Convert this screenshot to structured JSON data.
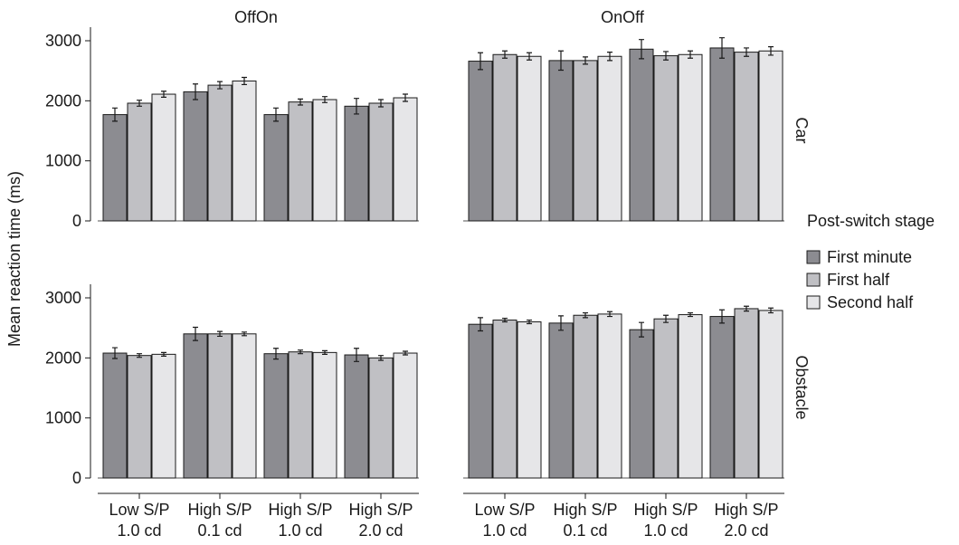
{
  "chart_data": {
    "type": "bar",
    "ylabel": "Mean reaction time (ms)",
    "ylim": [
      0,
      3300
    ],
    "yticks": [
      0,
      1000,
      2000,
      3000
    ],
    "categories": [
      [
        "Low S/P",
        "1.0 cd"
      ],
      [
        "High S/P",
        "0.1 cd"
      ],
      [
        "High S/P",
        "1.0 cd"
      ],
      [
        "High S/P",
        "2.0 cd"
      ]
    ],
    "columns": [
      "OffOn",
      "OnOff"
    ],
    "rows": [
      "Car",
      "Obstacle"
    ],
    "legend": {
      "title": "Post-switch stage",
      "position": "right",
      "entries": [
        "First minute",
        "First half",
        "Second half"
      ]
    },
    "colors": [
      "#8c8c91",
      "#c0c0c4",
      "#e6e6e8"
    ],
    "panels": [
      {
        "column": "OffOn",
        "row": "Car",
        "series": [
          {
            "name": "First minute",
            "values": [
              1770,
              2150,
              1770,
              1910
            ],
            "errors": [
              110,
              130,
              110,
              130
            ]
          },
          {
            "name": "First half",
            "values": [
              1960,
              2260,
              1980,
              1960
            ],
            "errors": [
              50,
              60,
              50,
              60
            ]
          },
          {
            "name": "Second half",
            "values": [
              2110,
              2330,
              2020,
              2050
            ],
            "errors": [
              50,
              60,
              50,
              60
            ]
          }
        ]
      },
      {
        "column": "OnOff",
        "row": "Car",
        "series": [
          {
            "name": "First minute",
            "values": [
              2660,
              2670,
              2860,
              2880
            ],
            "errors": [
              140,
              160,
              160,
              170
            ]
          },
          {
            "name": "First half",
            "values": [
              2770,
              2670,
              2750,
              2810
            ],
            "errors": [
              60,
              60,
              70,
              70
            ]
          },
          {
            "name": "Second half",
            "values": [
              2740,
              2740,
              2770,
              2830
            ],
            "errors": [
              60,
              70,
              60,
              70
            ]
          }
        ]
      },
      {
        "column": "OffOn",
        "row": "Obstacle",
        "series": [
          {
            "name": "First minute",
            "values": [
              2080,
              2400,
              2070,
              2050
            ],
            "errors": [
              90,
              110,
              90,
              110
            ]
          },
          {
            "name": "First half",
            "values": [
              2040,
              2400,
              2100,
              2000
            ],
            "errors": [
              30,
              40,
              30,
              40
            ]
          },
          {
            "name": "Second half",
            "values": [
              2060,
              2400,
              2090,
              2080
            ],
            "errors": [
              30,
              30,
              30,
              30
            ]
          }
        ]
      },
      {
        "column": "OnOff",
        "row": "Obstacle",
        "series": [
          {
            "name": "First minute",
            "values": [
              2560,
              2580,
              2470,
              2690
            ],
            "errors": [
              110,
              120,
              120,
              110
            ]
          },
          {
            "name": "First half",
            "values": [
              2630,
              2710,
              2650,
              2820
            ],
            "errors": [
              30,
              40,
              60,
              40
            ]
          },
          {
            "name": "Second half",
            "values": [
              2600,
              2730,
              2720,
              2790
            ],
            "errors": [
              30,
              40,
              30,
              40
            ]
          }
        ]
      }
    ]
  }
}
